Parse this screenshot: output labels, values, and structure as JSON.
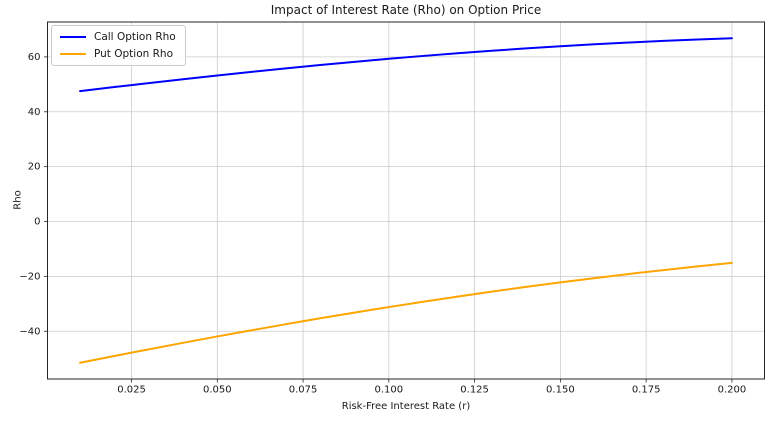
{
  "chart_data": {
    "type": "line",
    "title": "Impact of Interest Rate (Rho) on Option Price",
    "xlabel": "Risk-Free Interest Rate (r)",
    "ylabel": "Rho",
    "xlim": [
      0.0005,
      0.2095
    ],
    "ylim": [
      -57.4,
      72.72
    ],
    "grid": true,
    "legend_position": "upper left",
    "xticks": {
      "values": [
        0.025,
        0.05,
        0.075,
        0.1,
        0.125,
        0.15,
        0.175,
        0.2
      ],
      "labels": [
        "0.025",
        "0.050",
        "0.075",
        "0.100",
        "0.125",
        "0.150",
        "0.175",
        "0.200"
      ]
    },
    "yticks": {
      "values": [
        60,
        40,
        20,
        0,
        -20,
        -40
      ],
      "labels": [
        "60",
        "40",
        "20",
        "0",
        "−20",
        "−40"
      ]
    },
    "x": [
      0.01,
      0.02,
      0.03,
      0.04,
      0.05,
      0.06,
      0.07,
      0.08,
      0.09,
      0.1,
      0.11,
      0.12,
      0.13,
      0.14,
      0.15,
      0.16,
      0.17,
      0.18,
      0.19,
      0.2
    ],
    "series": [
      {
        "name": "Call Option Rho",
        "color": "#0000ff",
        "values": [
          47.53,
          49.01,
          50.46,
          51.87,
          53.23,
          54.55,
          55.82,
          57.04,
          58.2,
          59.31,
          60.35,
          61.33,
          62.25,
          63.09,
          63.88,
          64.6,
          65.24,
          65.83,
          66.35,
          66.8
        ]
      },
      {
        "name": "Put Option Rho",
        "color": "#ffa500",
        "values": [
          -51.48,
          -49.01,
          -46.59,
          -44.21,
          -41.89,
          -39.63,
          -37.42,
          -35.27,
          -33.19,
          -31.18,
          -29.23,
          -27.36,
          -25.56,
          -23.84,
          -22.19,
          -20.62,
          -19.12,
          -17.7,
          -16.35,
          -15.07
        ]
      }
    ],
    "colors": {
      "grid": "#cccccc",
      "spine": "#262626",
      "text": "#1a1a1a",
      "background": "#ffffff"
    }
  }
}
